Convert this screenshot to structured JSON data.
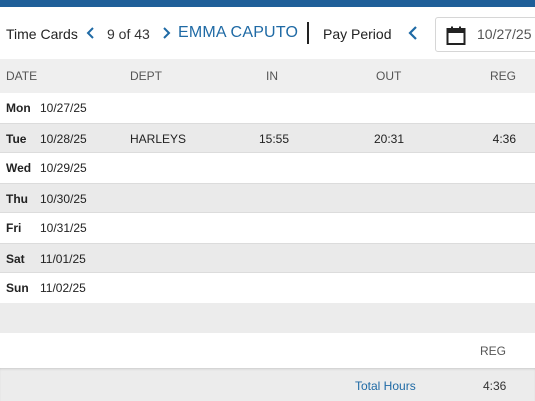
{
  "toolbar": {
    "title": "Time Cards",
    "record_position": "9 of 43",
    "employee_name": "EMMA CAPUTO",
    "pay_period_label": "Pay Period",
    "period_start": "10/27/25"
  },
  "table": {
    "headers": {
      "date": "DATE",
      "dept": "DEPT",
      "in": "IN",
      "out": "OUT",
      "reg": "REG"
    },
    "rows": [
      {
        "day": "Mon",
        "date": "10/27/25",
        "dept": "",
        "in": "",
        "out": "",
        "reg": ""
      },
      {
        "day": "Tue",
        "date": "10/28/25",
        "dept": "HARLEYS",
        "in": "15:55",
        "out": "20:31",
        "reg": "4:36"
      },
      {
        "day": "Wed",
        "date": "10/29/25",
        "dept": "",
        "in": "",
        "out": "",
        "reg": ""
      },
      {
        "day": "Thu",
        "date": "10/30/25",
        "dept": "",
        "in": "",
        "out": "",
        "reg": ""
      },
      {
        "day": "Fri",
        "date": "10/31/25",
        "dept": "",
        "in": "",
        "out": "",
        "reg": ""
      },
      {
        "day": "Sat",
        "date": "11/01/25",
        "dept": "",
        "in": "",
        "out": "",
        "reg": ""
      },
      {
        "day": "Sun",
        "date": "11/02/25",
        "dept": "",
        "in": "",
        "out": "",
        "reg": ""
      }
    ]
  },
  "summary": {
    "reg_header": "REG",
    "total_label": "Total Hours",
    "total_reg": "4:36"
  },
  "colors": {
    "brand_bar": "#1f5f99",
    "accent": "#1f6aa5"
  },
  "icons": {
    "prev": "chevron-left-icon",
    "next": "chevron-right-icon",
    "calendar": "calendar-icon"
  }
}
